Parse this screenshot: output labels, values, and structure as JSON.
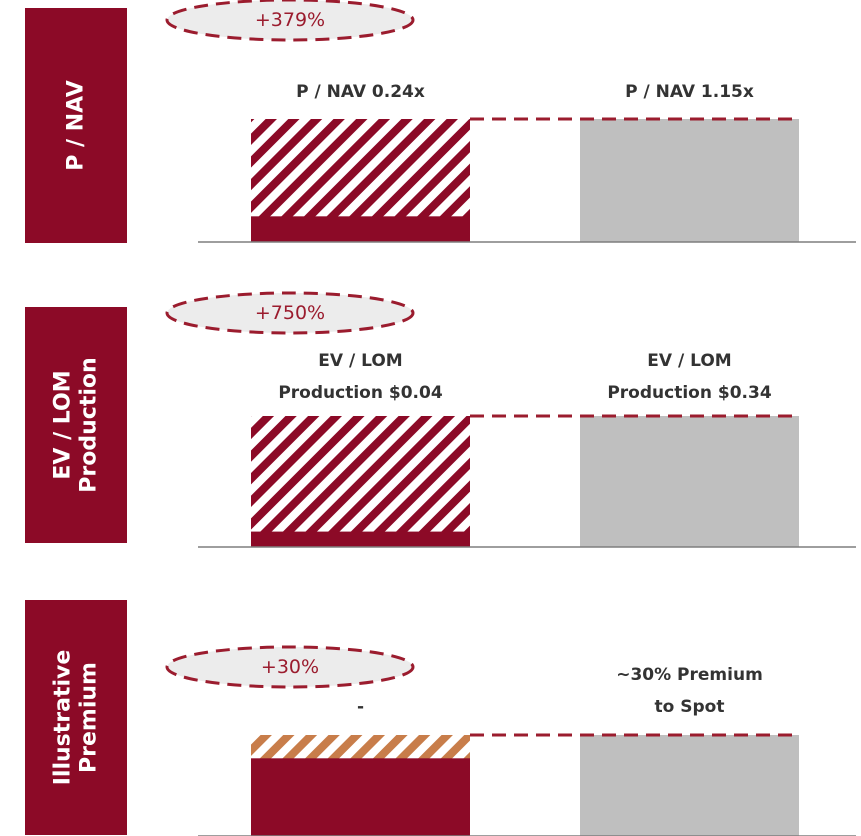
{
  "colors": {
    "brand": "#8c0a27",
    "grey": "#bfbfbf",
    "ellipse_fill": "#ececec",
    "dash": "#9b1c2e",
    "hatch_orange": "#c87d4a",
    "axis": "#7f7f7f"
  },
  "chart_data": [
    {
      "type": "bar",
      "panel_label": [
        "P / NAV"
      ],
      "change_label": "+379%",
      "categories": [
        "P / NAV 0.24x",
        "P / NAV 1.15x"
      ],
      "category_labels": [
        [
          "P / NAV 0.24x"
        ],
        [
          "P / NAV 1.15x"
        ]
      ],
      "values": [
        0.24,
        1.15
      ],
      "pattern": [
        "hatch-brand",
        "solid-grey"
      ]
    },
    {
      "type": "bar",
      "panel_label": [
        "EV / LOM",
        "Production"
      ],
      "change_label": "+750%",
      "categories": [
        "EV / LOM Production $0.04",
        "EV / LOM Production $0.34"
      ],
      "category_labels": [
        [
          "EV / LOM",
          "Production $0.04"
        ],
        [
          "EV / LOM",
          "Production $0.34"
        ]
      ],
      "values": [
        0.04,
        0.34
      ],
      "pattern": [
        "hatch-brand",
        "solid-grey"
      ]
    },
    {
      "type": "bar",
      "panel_label": [
        "Illustrative",
        "Premium"
      ],
      "change_label": "+30%",
      "categories": [
        "-",
        "~30% Premium to Spot"
      ],
      "category_labels": [
        [
          "-"
        ],
        [
          "~30% Premium",
          "to Spot"
        ]
      ],
      "values": [
        1.0,
        1.3
      ],
      "pattern": [
        "hatch-orange",
        "solid-grey"
      ]
    }
  ]
}
